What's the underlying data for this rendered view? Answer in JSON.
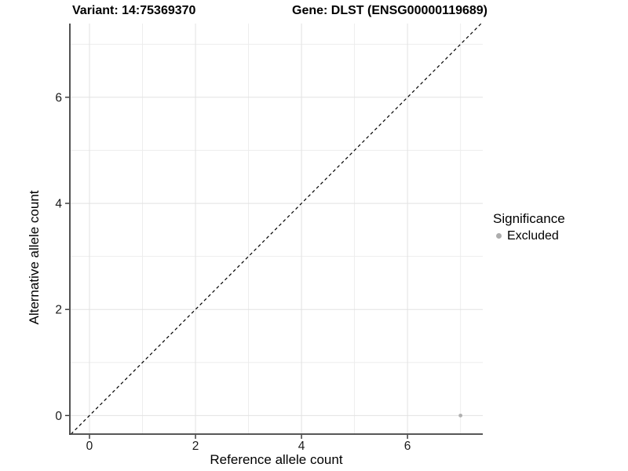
{
  "header": {
    "variant_title": "Variant: 14:75369370",
    "gene_title": "Gene: DLST (ENSG00000119689)"
  },
  "axes": {
    "x": {
      "label": "Reference allele count"
    },
    "y": {
      "label": "Alternative allele count"
    }
  },
  "legend": {
    "title": "Significance",
    "items": [
      {
        "label": "Excluded",
        "color": "#adadad"
      }
    ]
  },
  "colors": {
    "background": "#ffffff",
    "major_grid": "#e2e2e2",
    "minor_grid": "#ededed",
    "axis_line": "#3f3f3f",
    "tick_mark": "#333333",
    "tick_label": "#1a1a1a",
    "identity_line": "#000000",
    "point": "#b0b0b0"
  },
  "chart_data": {
    "type": "scatter",
    "title": "Variant: 14:75369370 | Gene: DLST (ENSG00000119689)",
    "xlabel": "Reference allele count",
    "ylabel": "Alternative allele count",
    "xlim": [
      -0.37,
      7.42
    ],
    "ylim": [
      -0.35,
      7.39
    ],
    "x_ticks": [
      0,
      2,
      4,
      6
    ],
    "y_ticks": [
      0,
      2,
      4,
      6
    ],
    "x_minor_ticks": [
      1,
      3,
      5,
      7
    ],
    "y_minor_ticks": [
      1,
      3,
      5,
      7
    ],
    "grid": true,
    "legend_position": "right",
    "legend_title": "Significance",
    "series": [
      {
        "name": "Excluded",
        "color": "#b0b0b0",
        "points": [
          {
            "x": 7,
            "y": 0
          }
        ]
      }
    ],
    "reference_line": {
      "type": "identity y=x",
      "style": "dashed",
      "color": "#000000"
    }
  }
}
